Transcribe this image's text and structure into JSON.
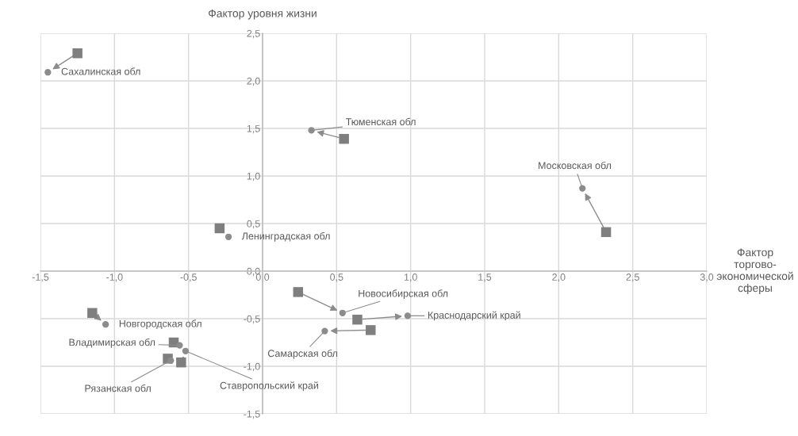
{
  "chart_data": {
    "type": "scatter",
    "ylabel": "Фактор уровня жизни",
    "xlabel": "Фактор\nторгово-\nэкономической\nсферы",
    "xlim": [
      -1.5,
      3.0
    ],
    "ylim": [
      -1.5,
      2.5
    ],
    "xticks": [
      {
        "value": -1.5,
        "label": "-1,5"
      },
      {
        "value": -1.0,
        "label": "-1,0"
      },
      {
        "value": -0.5,
        "label": "-0,5"
      },
      {
        "value": 0,
        "label": "0,0"
      },
      {
        "value": 0.5,
        "label": "0,5"
      },
      {
        "value": 1.0,
        "label": "1,0"
      },
      {
        "value": 1.5,
        "label": "1,5"
      },
      {
        "value": 2.0,
        "label": "2,0"
      },
      {
        "value": 2.5,
        "label": "2,5"
      },
      {
        "value": 3.0,
        "label": "3,0"
      }
    ],
    "yticks": [
      {
        "value": -1.5,
        "label": "-1,5"
      },
      {
        "value": -1.0,
        "label": "-1,0"
      },
      {
        "value": -0.5,
        "label": "-0,5"
      },
      {
        "value": 0,
        "label": "0,0"
      },
      {
        "value": 0.5,
        "label": "0,5"
      },
      {
        "value": 1.0,
        "label": "1,0"
      },
      {
        "value": 1.5,
        "label": "1,5"
      },
      {
        "value": 2.0,
        "label": "2,0"
      },
      {
        "value": 2.5,
        "label": "2,5"
      }
    ],
    "grid": true,
    "series": [
      {
        "color": "#7f7f7f",
        "marker": "square",
        "x": [
          -1.25,
          0.55,
          -0.29,
          2.32,
          0.24,
          0.64,
          0.73,
          -1.15,
          -0.6,
          -0.55,
          -0.64
        ],
        "values": [
          2.29,
          1.39,
          0.45,
          0.41,
          -0.22,
          -0.51,
          -0.62,
          -0.44,
          -0.75,
          -0.96,
          -0.92
        ]
      },
      {
        "color": "#8c8c8c",
        "marker": "circle",
        "x": [
          -1.45,
          0.33,
          -0.23,
          2.16,
          0.54,
          0.98,
          0.42,
          -1.06,
          -0.56,
          -0.52,
          -0.62
        ],
        "values": [
          2.09,
          1.48,
          0.36,
          0.87,
          -0.44,
          -0.47,
          -0.63,
          -0.56,
          -0.78,
          -0.84,
          -0.94
        ]
      }
    ],
    "annotations": [
      {
        "text": "Сахалинская обл",
        "x": -1.45,
        "y": 2.09
      },
      {
        "text": "Тюменская обл",
        "x": 0.33,
        "y": 1.48
      },
      {
        "text": "Ленинградская обл",
        "x": -0.23,
        "y": 0.36
      },
      {
        "text": "Московская обл",
        "x": 2.16,
        "y": 0.87
      },
      {
        "text": "Новосибирская обл",
        "x": 0.54,
        "y": -0.44
      },
      {
        "text": "Краснодарский край",
        "x": 0.98,
        "y": -0.47
      },
      {
        "text": "Самарская обл",
        "x": 0.42,
        "y": -0.63
      },
      {
        "text": "Новгородская обл",
        "x": -1.06,
        "y": -0.56
      },
      {
        "text": "Владимирская обл",
        "x": -0.56,
        "y": -0.78
      },
      {
        "text": "Ставропольский край",
        "x": -0.52,
        "y": -0.84
      },
      {
        "text": "Рязанская обл",
        "x": -0.62,
        "y": -0.94
      }
    ]
  }
}
